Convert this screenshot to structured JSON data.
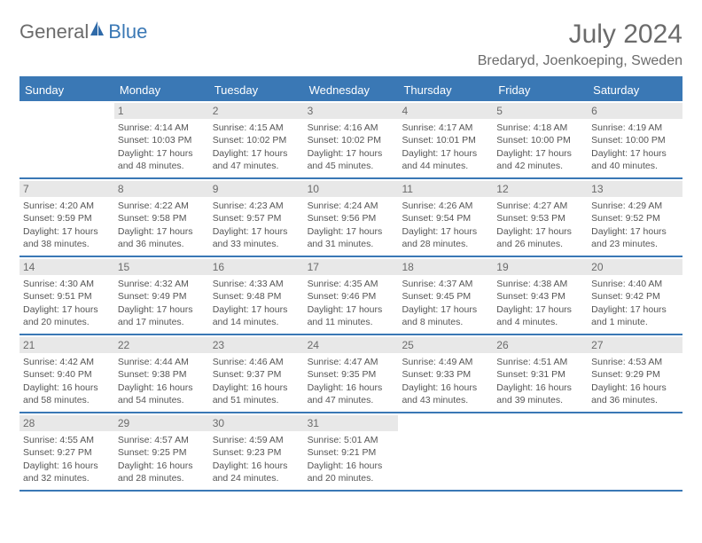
{
  "brand": {
    "general": "General",
    "blue": "Blue"
  },
  "title": "July 2024",
  "location": "Bredaryd, Joenkoeping, Sweden",
  "colors": {
    "accent": "#3a78b5",
    "text": "#555555",
    "daybg": "#e8e8e8",
    "background": "#ffffff"
  },
  "weekdays": [
    "Sunday",
    "Monday",
    "Tuesday",
    "Wednesday",
    "Thursday",
    "Friday",
    "Saturday"
  ],
  "weeks": [
    [
      {
        "day": "",
        "lines": []
      },
      {
        "day": "1",
        "lines": [
          "Sunrise: 4:14 AM",
          "Sunset: 10:03 PM",
          "Daylight: 17 hours",
          "and 48 minutes."
        ]
      },
      {
        "day": "2",
        "lines": [
          "Sunrise: 4:15 AM",
          "Sunset: 10:02 PM",
          "Daylight: 17 hours",
          "and 47 minutes."
        ]
      },
      {
        "day": "3",
        "lines": [
          "Sunrise: 4:16 AM",
          "Sunset: 10:02 PM",
          "Daylight: 17 hours",
          "and 45 minutes."
        ]
      },
      {
        "day": "4",
        "lines": [
          "Sunrise: 4:17 AM",
          "Sunset: 10:01 PM",
          "Daylight: 17 hours",
          "and 44 minutes."
        ]
      },
      {
        "day": "5",
        "lines": [
          "Sunrise: 4:18 AM",
          "Sunset: 10:00 PM",
          "Daylight: 17 hours",
          "and 42 minutes."
        ]
      },
      {
        "day": "6",
        "lines": [
          "Sunrise: 4:19 AM",
          "Sunset: 10:00 PM",
          "Daylight: 17 hours",
          "and 40 minutes."
        ]
      }
    ],
    [
      {
        "day": "7",
        "lines": [
          "Sunrise: 4:20 AM",
          "Sunset: 9:59 PM",
          "Daylight: 17 hours",
          "and 38 minutes."
        ]
      },
      {
        "day": "8",
        "lines": [
          "Sunrise: 4:22 AM",
          "Sunset: 9:58 PM",
          "Daylight: 17 hours",
          "and 36 minutes."
        ]
      },
      {
        "day": "9",
        "lines": [
          "Sunrise: 4:23 AM",
          "Sunset: 9:57 PM",
          "Daylight: 17 hours",
          "and 33 minutes."
        ]
      },
      {
        "day": "10",
        "lines": [
          "Sunrise: 4:24 AM",
          "Sunset: 9:56 PM",
          "Daylight: 17 hours",
          "and 31 minutes."
        ]
      },
      {
        "day": "11",
        "lines": [
          "Sunrise: 4:26 AM",
          "Sunset: 9:54 PM",
          "Daylight: 17 hours",
          "and 28 minutes."
        ]
      },
      {
        "day": "12",
        "lines": [
          "Sunrise: 4:27 AM",
          "Sunset: 9:53 PM",
          "Daylight: 17 hours",
          "and 26 minutes."
        ]
      },
      {
        "day": "13",
        "lines": [
          "Sunrise: 4:29 AM",
          "Sunset: 9:52 PM",
          "Daylight: 17 hours",
          "and 23 minutes."
        ]
      }
    ],
    [
      {
        "day": "14",
        "lines": [
          "Sunrise: 4:30 AM",
          "Sunset: 9:51 PM",
          "Daylight: 17 hours",
          "and 20 minutes."
        ]
      },
      {
        "day": "15",
        "lines": [
          "Sunrise: 4:32 AM",
          "Sunset: 9:49 PM",
          "Daylight: 17 hours",
          "and 17 minutes."
        ]
      },
      {
        "day": "16",
        "lines": [
          "Sunrise: 4:33 AM",
          "Sunset: 9:48 PM",
          "Daylight: 17 hours",
          "and 14 minutes."
        ]
      },
      {
        "day": "17",
        "lines": [
          "Sunrise: 4:35 AM",
          "Sunset: 9:46 PM",
          "Daylight: 17 hours",
          "and 11 minutes."
        ]
      },
      {
        "day": "18",
        "lines": [
          "Sunrise: 4:37 AM",
          "Sunset: 9:45 PM",
          "Daylight: 17 hours",
          "and 8 minutes."
        ]
      },
      {
        "day": "19",
        "lines": [
          "Sunrise: 4:38 AM",
          "Sunset: 9:43 PM",
          "Daylight: 17 hours",
          "and 4 minutes."
        ]
      },
      {
        "day": "20",
        "lines": [
          "Sunrise: 4:40 AM",
          "Sunset: 9:42 PM",
          "Daylight: 17 hours",
          "and 1 minute."
        ]
      }
    ],
    [
      {
        "day": "21",
        "lines": [
          "Sunrise: 4:42 AM",
          "Sunset: 9:40 PM",
          "Daylight: 16 hours",
          "and 58 minutes."
        ]
      },
      {
        "day": "22",
        "lines": [
          "Sunrise: 4:44 AM",
          "Sunset: 9:38 PM",
          "Daylight: 16 hours",
          "and 54 minutes."
        ]
      },
      {
        "day": "23",
        "lines": [
          "Sunrise: 4:46 AM",
          "Sunset: 9:37 PM",
          "Daylight: 16 hours",
          "and 51 minutes."
        ]
      },
      {
        "day": "24",
        "lines": [
          "Sunrise: 4:47 AM",
          "Sunset: 9:35 PM",
          "Daylight: 16 hours",
          "and 47 minutes."
        ]
      },
      {
        "day": "25",
        "lines": [
          "Sunrise: 4:49 AM",
          "Sunset: 9:33 PM",
          "Daylight: 16 hours",
          "and 43 minutes."
        ]
      },
      {
        "day": "26",
        "lines": [
          "Sunrise: 4:51 AM",
          "Sunset: 9:31 PM",
          "Daylight: 16 hours",
          "and 39 minutes."
        ]
      },
      {
        "day": "27",
        "lines": [
          "Sunrise: 4:53 AM",
          "Sunset: 9:29 PM",
          "Daylight: 16 hours",
          "and 36 minutes."
        ]
      }
    ],
    [
      {
        "day": "28",
        "lines": [
          "Sunrise: 4:55 AM",
          "Sunset: 9:27 PM",
          "Daylight: 16 hours",
          "and 32 minutes."
        ]
      },
      {
        "day": "29",
        "lines": [
          "Sunrise: 4:57 AM",
          "Sunset: 9:25 PM",
          "Daylight: 16 hours",
          "and 28 minutes."
        ]
      },
      {
        "day": "30",
        "lines": [
          "Sunrise: 4:59 AM",
          "Sunset: 9:23 PM",
          "Daylight: 16 hours",
          "and 24 minutes."
        ]
      },
      {
        "day": "31",
        "lines": [
          "Sunrise: 5:01 AM",
          "Sunset: 9:21 PM",
          "Daylight: 16 hours",
          "and 20 minutes."
        ]
      },
      {
        "day": "",
        "lines": []
      },
      {
        "day": "",
        "lines": []
      },
      {
        "day": "",
        "lines": []
      }
    ]
  ]
}
